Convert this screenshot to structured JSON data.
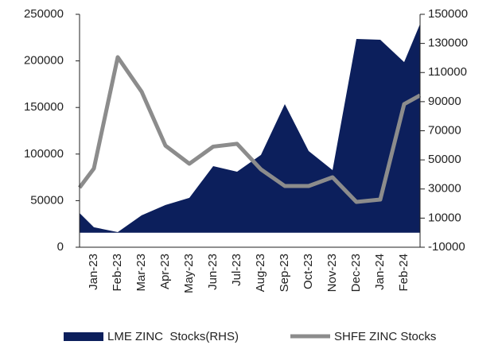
{
  "chart_data": {
    "type": "combo",
    "categories": [
      null,
      "Jan-23",
      "Feb-23",
      "Mar-23",
      "Apr-23",
      "May-23",
      "Jun-23",
      "Jul-23",
      "Aug-23",
      "Sep-23",
      "Oct-23",
      "Nov-23",
      "Dec-23",
      "Jan-24",
      "Feb-24",
      null
    ],
    "series": [
      {
        "name": "LME ZINC  Stocks(RHS)",
        "type": "area",
        "axis": "y2",
        "color": "#0c1f5c",
        "values": [
          13500,
          3700,
          400,
          11900,
          19000,
          23900,
          45700,
          41900,
          53400,
          88300,
          56100,
          43000,
          133100,
          132500,
          117200,
          143400
        ]
      },
      {
        "name": "SHFE ZINC Stocks",
        "type": "line",
        "color": "#8c8c8c",
        "values": [
          64000,
          84500,
          204000,
          167000,
          109000,
          89600,
          108000,
          111000,
          83600,
          65700,
          65700,
          75100,
          48600,
          51200,
          153600,
          163000
        ]
      }
    ],
    "ylim": [
      0,
      250000
    ],
    "yticks": [
      0,
      50000,
      100000,
      150000,
      200000,
      250000
    ],
    "y2lim": [
      -10000,
      150000
    ],
    "y2ticks": [
      -10000,
      10000,
      30000,
      50000,
      70000,
      90000,
      110000,
      130000,
      150000
    ]
  }
}
